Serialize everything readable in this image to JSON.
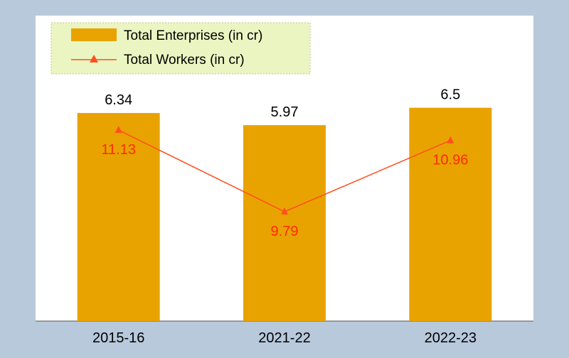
{
  "colors": {
    "outer_background": "#b8c9dc",
    "plot_background": "#ffffff",
    "bar_fill": "#e8a300",
    "line_color": "#ff4f1f",
    "line_label_color": "#ff2a00",
    "legend_background": "#eaf5c2",
    "legend_border": "#c9c77a",
    "axis_color": "#555555",
    "text_color": "#000000"
  },
  "chart_data": {
    "type": "bar",
    "categories": [
      "2015-16",
      "2021-22",
      "2022-23"
    ],
    "series": [
      {
        "name": "Total Enterprises (in cr)",
        "type": "bar",
        "values": [
          6.34,
          5.97,
          6.5
        ],
        "labels": [
          "6.34",
          "5.97",
          "6.5"
        ]
      },
      {
        "name": "Total Workers (in cr)",
        "type": "line",
        "marker": "triangle",
        "values": [
          11.13,
          9.79,
          10.96
        ],
        "labels": [
          "11.13",
          "9.79",
          "10.96"
        ]
      }
    ],
    "legend": {
      "placement": "top-left"
    },
    "grid": false
  }
}
